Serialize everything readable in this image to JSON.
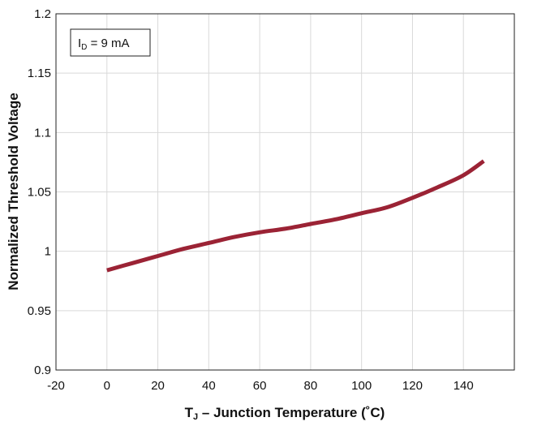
{
  "chart_data": {
    "type": "line",
    "title": "",
    "xlabel_main": "T",
    "xlabel_sub": "J",
    "xlabel_rest": " – Junction Temperature (˚C)",
    "ylabel": "Normalized Threshold Voltage",
    "xlim": [
      -20,
      160
    ],
    "ylim": [
      0.9,
      1.2
    ],
    "x_ticks": [
      -20,
      0,
      20,
      40,
      60,
      80,
      100,
      120,
      140
    ],
    "y_ticks": [
      0.9,
      0.95,
      1.0,
      1.05,
      1.1,
      1.15,
      1.2
    ],
    "x_tick_labels": [
      "-20",
      "0",
      "20",
      "40",
      "60",
      "80",
      "100",
      "120",
      "140"
    ],
    "y_tick_labels": [
      "0.9",
      "0.95",
      "1",
      "1.05",
      "1.1",
      "1.15",
      "1.2"
    ],
    "grid": true,
    "legend_position": "top-left",
    "annotation": {
      "main": "I",
      "sub": "D",
      "rest": " = 9 mA"
    },
    "series": [
      {
        "color": "#9b2335",
        "x": [
          0,
          10,
          20,
          30,
          40,
          50,
          60,
          70,
          80,
          90,
          100,
          110,
          120,
          130,
          140,
          148
        ],
        "y": [
          0.984,
          0.99,
          0.996,
          1.002,
          1.007,
          1.012,
          1.016,
          1.019,
          1.023,
          1.027,
          1.032,
          1.037,
          1.045,
          1.054,
          1.064,
          1.076
        ]
      }
    ]
  }
}
